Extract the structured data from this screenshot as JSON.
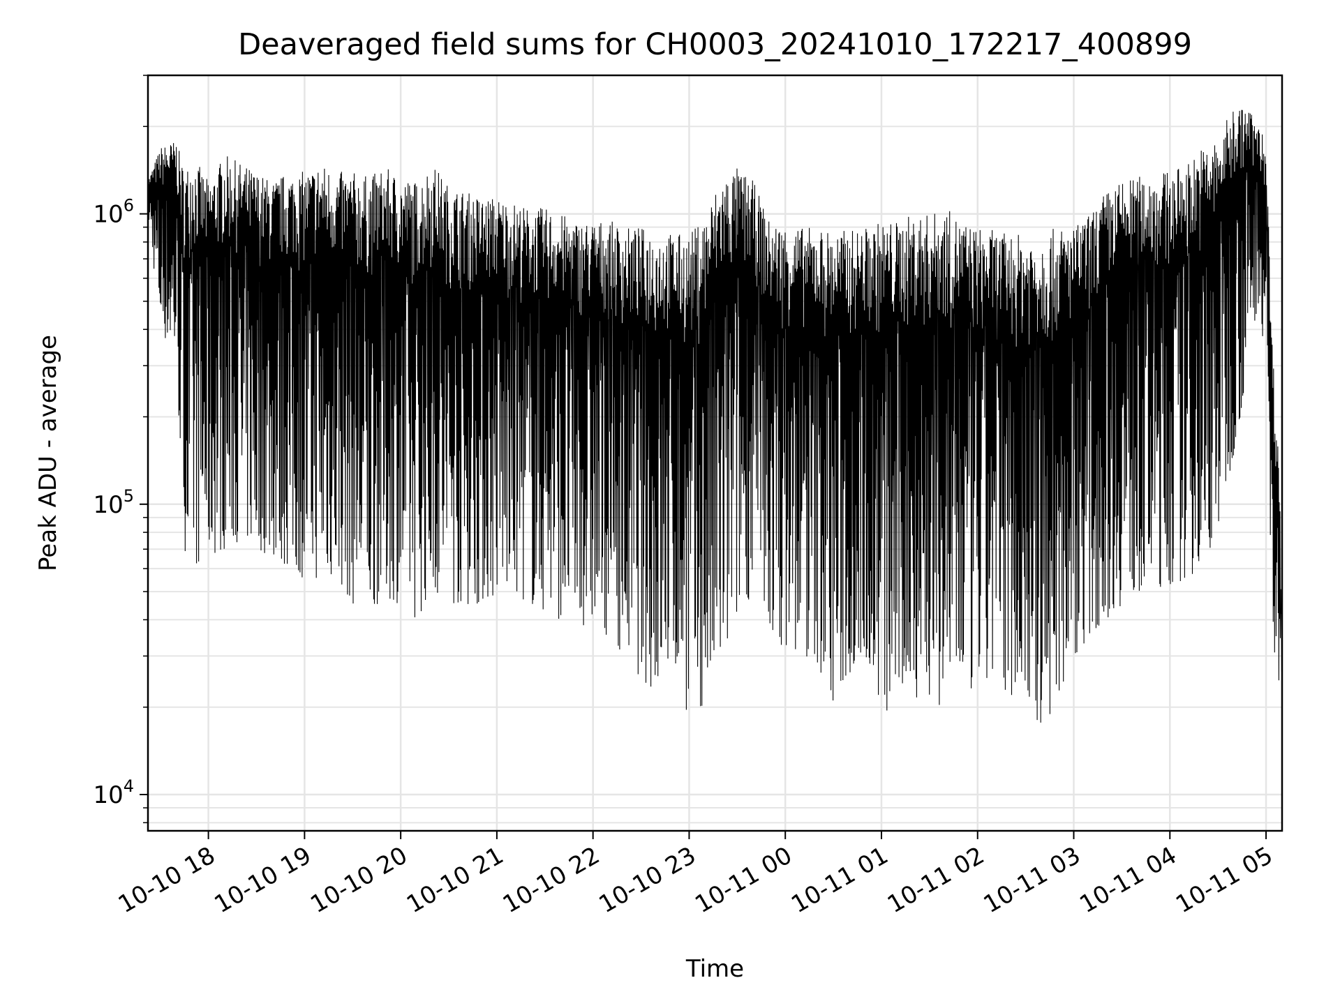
{
  "chart_data": {
    "type": "line",
    "title": "Deaveraged field sums for CH0003_20241010_172217_400899",
    "xlabel": "Time",
    "ylabel": "Peak ADU - average",
    "yscale": "log",
    "ylim": [
      7500,
      3000000
    ],
    "xlim": [
      "2024-10-10T17:22:17",
      "2024-10-11T05:10:00"
    ],
    "grid": true,
    "legend": "none",
    "line_color": "#000000",
    "grid_color": "#e5e5e5",
    "x_ticks": [
      {
        "value": "2024-10-10T18:00",
        "label": "10-10 18"
      },
      {
        "value": "2024-10-10T19:00",
        "label": "10-10 19"
      },
      {
        "value": "2024-10-10T20:00",
        "label": "10-10 20"
      },
      {
        "value": "2024-10-10T21:00",
        "label": "10-10 21"
      },
      {
        "value": "2024-10-10T22:00",
        "label": "10-10 22"
      },
      {
        "value": "2024-10-10T23:00",
        "label": "10-10 23"
      },
      {
        "value": "2024-10-11T00:00",
        "label": "10-11 00"
      },
      {
        "value": "2024-10-11T01:00",
        "label": "10-11 01"
      },
      {
        "value": "2024-10-11T02:00",
        "label": "10-11 02"
      },
      {
        "value": "2024-10-11T03:00",
        "label": "10-11 03"
      },
      {
        "value": "2024-10-11T04:00",
        "label": "10-11 04"
      },
      {
        "value": "2024-10-11T05:00",
        "label": "10-11 05"
      }
    ],
    "y_ticks": [
      {
        "value": 10000,
        "base": "10",
        "exp": "4"
      },
      {
        "value": 100000,
        "base": "10",
        "exp": "5"
      },
      {
        "value": 1000000,
        "base": "10",
        "exp": "6"
      }
    ],
    "series": [
      {
        "x": [
          "2024-10-10T17:22:17",
          "2024-10-10T17:30",
          "2024-10-10T17:40",
          "2024-10-10T17:45",
          "2024-10-10T17:50",
          "2024-10-10T18:00",
          "2024-10-10T18:10",
          "2024-10-10T18:20",
          "2024-10-10T18:30",
          "2024-10-10T18:40",
          "2024-10-10T18:50",
          "2024-10-10T19:00",
          "2024-10-10T19:10",
          "2024-10-10T19:20",
          "2024-10-10T19:30",
          "2024-10-10T19:40",
          "2024-10-10T19:50",
          "2024-10-10T20:00",
          "2024-10-10T20:10",
          "2024-10-10T20:20",
          "2024-10-10T20:30",
          "2024-10-10T20:40",
          "2024-10-10T20:50",
          "2024-10-10T21:00",
          "2024-10-10T21:10",
          "2024-10-10T21:20",
          "2024-10-10T21:30",
          "2024-10-10T21:40",
          "2024-10-10T21:50",
          "2024-10-10T22:00",
          "2024-10-10T22:10",
          "2024-10-10T22:20",
          "2024-10-10T22:30",
          "2024-10-10T22:40",
          "2024-10-10T22:50",
          "2024-10-10T23:00",
          "2024-10-10T23:10",
          "2024-10-10T23:20",
          "2024-10-10T23:30",
          "2024-10-10T23:40",
          "2024-10-10T23:50",
          "2024-10-11T00:00",
          "2024-10-11T00:10",
          "2024-10-11T00:20",
          "2024-10-11T00:30",
          "2024-10-11T00:40",
          "2024-10-11T00:50",
          "2024-10-11T01:00",
          "2024-10-11T01:10",
          "2024-10-11T01:20",
          "2024-10-11T01:30",
          "2024-10-11T01:40",
          "2024-10-11T01:50",
          "2024-10-11T02:00",
          "2024-10-11T02:10",
          "2024-10-11T02:20",
          "2024-10-11T02:30",
          "2024-10-11T02:40",
          "2024-10-11T02:50",
          "2024-10-11T03:00",
          "2024-10-11T03:10",
          "2024-10-11T03:20",
          "2024-10-11T03:30",
          "2024-10-11T03:40",
          "2024-10-11T03:50",
          "2024-10-11T04:00",
          "2024-10-11T04:10",
          "2024-10-11T04:20",
          "2024-10-11T04:30",
          "2024-10-11T04:40",
          "2024-10-11T04:50",
          "2024-10-11T04:55",
          "2024-10-11T05:00",
          "2024-10-11T05:04",
          "2024-10-11T05:08",
          "2024-10-11T05:10"
        ],
        "upper": [
          1300000,
          1700000,
          1800000,
          1400000,
          1600000,
          1300000,
          1600000,
          1500000,
          1400000,
          1300000,
          1400000,
          1400000,
          1500000,
          1400000,
          1400000,
          1350000,
          1450000,
          1350000,
          1300000,
          1500000,
          1250000,
          1200000,
          1150000,
          1150000,
          1100000,
          1050000,
          1050000,
          1000000,
          950000,
          950000,
          950000,
          900000,
          900000,
          880000,
          860000,
          850000,
          1000000,
          1350000,
          1450000,
          1300000,
          950000,
          920000,
          900000,
          900000,
          880000,
          880000,
          900000,
          950000,
          950000,
          1000000,
          1000000,
          1050000,
          950000,
          900000,
          880000,
          850000,
          850000,
          860000,
          900000,
          900000,
          1000000,
          1200000,
          1300000,
          1350000,
          1400000,
          1400000,
          1500000,
          1700000,
          1800000,
          2400000,
          2300000,
          2000000,
          1800000,
          350000,
          150000,
          40000
        ],
        "lower": [
          1000000,
          400000,
          300000,
          70000,
          60000,
          65000,
          70000,
          75000,
          70000,
          65000,
          60000,
          55000,
          55000,
          55000,
          45000,
          42000,
          48000,
          45000,
          40000,
          50000,
          45000,
          45000,
          45000,
          48000,
          50000,
          45000,
          42000,
          40000,
          38000,
          38000,
          35000,
          30000,
          25000,
          22000,
          28000,
          18000,
          20000,
          25000,
          40000,
          50000,
          35000,
          32000,
          30000,
          28000,
          20000,
          25000,
          30000,
          18000,
          20000,
          22000,
          20000,
          20000,
          22000,
          22000,
          24000,
          22000,
          22000,
          16000,
          20000,
          30000,
          35000,
          40000,
          45000,
          50000,
          50000,
          52000,
          55000,
          60000,
          80000,
          150000,
          300000,
          500000,
          300000,
          30000,
          20000,
          9000
        ]
      }
    ]
  }
}
